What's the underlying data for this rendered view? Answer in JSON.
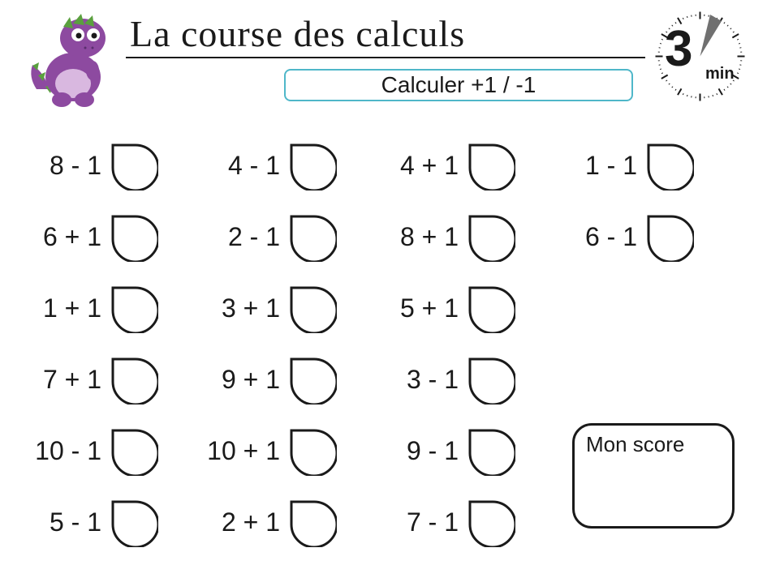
{
  "header": {
    "title": "La course des calculs",
    "subtitle": "Calculer +1  / -1",
    "subtitle_border_color": "#4fb7c9"
  },
  "timer": {
    "number": "3",
    "unit": "min",
    "tick_color": "#1a1a1a",
    "hand_color": "#707070"
  },
  "mascot": {
    "body_color": "#8d4aa0",
    "belly_color": "#d9b8e0",
    "spike_color": "#5aa03e",
    "eye_color": "#ffffff"
  },
  "drop_shape": {
    "stroke": "#1a1a1a",
    "stroke_width": 3,
    "fill": "#ffffff"
  },
  "score": {
    "label": "Mon score"
  },
  "grid": {
    "columns": 4,
    "rows": 6,
    "cells": [
      [
        "8 - 1",
        "4 - 1",
        "4 + 1",
        "1 - 1"
      ],
      [
        "6 + 1",
        "2 - 1",
        "8 + 1",
        "6 - 1"
      ],
      [
        "1 + 1",
        "3 + 1",
        "5 + 1",
        null
      ],
      [
        "7 + 1",
        "9 + 1",
        "3 - 1",
        null
      ],
      [
        "10 - 1",
        "10 + 1",
        "9 - 1",
        null
      ],
      [
        "5 - 1",
        "2 + 1",
        "7 - 1",
        null
      ]
    ]
  },
  "colors": {
    "text": "#1a1a1a",
    "background": "#ffffff"
  }
}
